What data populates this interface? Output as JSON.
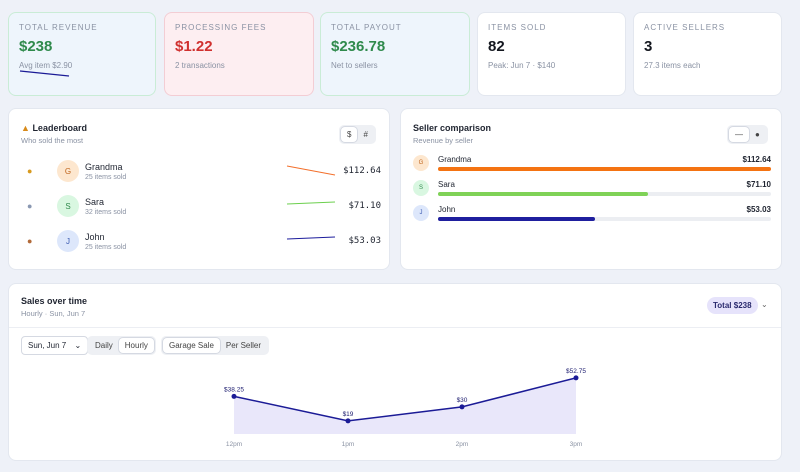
{
  "stats": [
    {
      "label": "TOTAL REVENUE",
      "value": "$238",
      "sub": "Avg item $2.90"
    },
    {
      "label": "PROCESSING FEES",
      "value": "$1.22",
      "sub": "2 transactions"
    },
    {
      "label": "TOTAL PAYOUT",
      "value": "$236.78",
      "sub": "Net to sellers"
    },
    {
      "label": "ITEMS SOLD",
      "value": "82",
      "sub": "Peak: Jun 7 · $140"
    },
    {
      "label": "ACTIVE SELLERS",
      "value": "3",
      "sub": "27.3 items each"
    }
  ],
  "leaderboard": {
    "title": "Leaderboard",
    "subtitle": "Who sold the most",
    "toggle": [
      "$",
      "#"
    ],
    "rows": [
      {
        "initial": "G",
        "name": "Grandma",
        "items": "25 items sold",
        "amount": "$112.64",
        "color": "#f36f2b"
      },
      {
        "initial": "S",
        "name": "Sara",
        "items": "32 items sold",
        "amount": "$71.10",
        "color": "#6ccf4e"
      },
      {
        "initial": "J",
        "name": "John",
        "items": "25 items sold",
        "amount": "$53.03",
        "color": "#1c1c9c"
      }
    ]
  },
  "comparison": {
    "title": "Seller comparison",
    "subtitle": "Revenue by seller",
    "rows": [
      {
        "initial": "G",
        "name": "Grandma",
        "amount": "$112.64",
        "share": 1.0,
        "color": "#f47312"
      },
      {
        "initial": "S",
        "name": "Sara",
        "amount": "$71.10",
        "share": 0.63,
        "color": "#7fd257"
      },
      {
        "initial": "J",
        "name": "John",
        "amount": "$53.03",
        "share": 0.47,
        "color": "#1f1f9e"
      }
    ]
  },
  "sales": {
    "title": "Sales over time",
    "subtitle": "Hourly · Sun, Jun 7",
    "total": "Total $238",
    "date_select": "Sun, Jun 7",
    "granularity": [
      "Daily",
      "Hourly"
    ],
    "view": [
      "Garage Sale",
      "Per Seller"
    ]
  },
  "chart_data": {
    "type": "area",
    "categories": [
      "12pm",
      "1pm",
      "2pm",
      "3pm"
    ],
    "values": [
      38.25,
      19,
      30,
      52.75
    ],
    "labels": [
      "$38.25",
      "$19",
      "$30",
      "$52.75"
    ],
    "color": "#1b1b96"
  }
}
